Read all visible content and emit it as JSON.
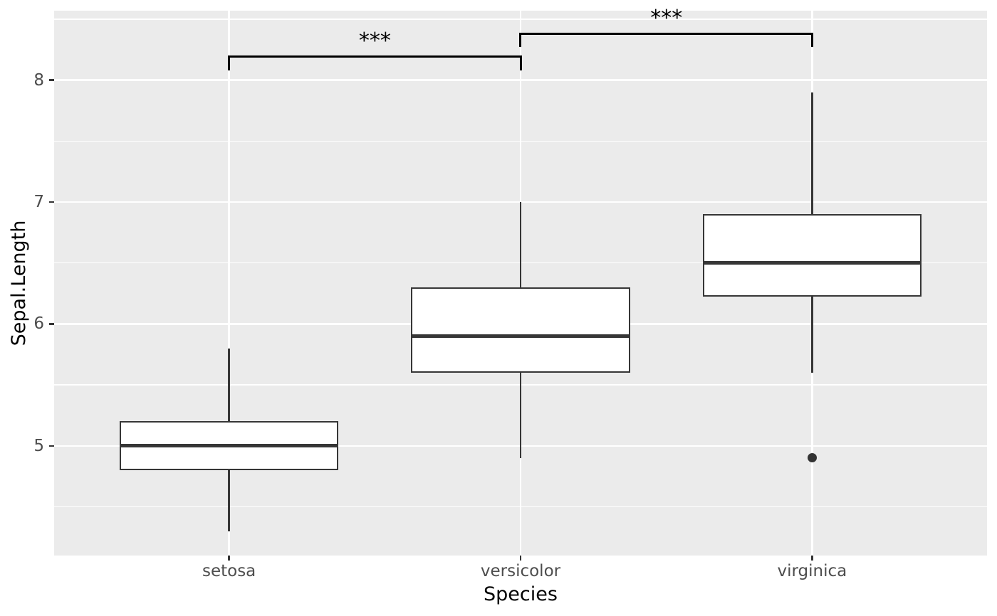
{
  "chart_data": {
    "type": "boxplot",
    "title": "",
    "xlabel": "Species",
    "ylabel": "Sepal.Length",
    "categories": [
      "setosa",
      "versicolor",
      "virginica"
    ],
    "series": [
      {
        "name": "setosa",
        "whisker_low": 4.3,
        "q1": 4.8,
        "median": 5.0,
        "q3": 5.2,
        "whisker_high": 5.8,
        "outliers": []
      },
      {
        "name": "versicolor",
        "whisker_low": 4.9,
        "q1": 5.6,
        "median": 5.9,
        "q3": 6.3,
        "whisker_high": 7.0,
        "outliers": []
      },
      {
        "name": "virginica",
        "whisker_low": 5.6,
        "q1": 6.225,
        "median": 6.5,
        "q3": 6.9,
        "whisker_high": 7.9,
        "outliers": [
          4.9
        ]
      }
    ],
    "significance_brackets": [
      {
        "from": "setosa",
        "to": "versicolor",
        "label": "***",
        "y": 8.19,
        "tick_down": 0.1
      },
      {
        "from": "versicolor",
        "to": "virginica",
        "label": "***",
        "y": 8.38,
        "tick_down": 0.1
      }
    ],
    "y_major_ticks": [
      5,
      6,
      7,
      8
    ],
    "y_tick_labels": [
      "5",
      "6",
      "7",
      "8"
    ],
    "y_minor_ticks": [
      4.5,
      5.5,
      6.5,
      7.5,
      8.5
    ],
    "ylim": [
      4.1,
      8.57
    ],
    "x_domain": [
      0.4,
      3.6
    ],
    "box_width_units": 0.75,
    "grid": true,
    "legend": "none"
  },
  "colors": {
    "panel_bg": "#EBEBEB",
    "grid": "#FFFFFF",
    "box_stroke": "#363636",
    "box_fill": "#FFFFFF",
    "outlier": "#333333",
    "bracket": "#000000",
    "sig_label": "#000000",
    "axis_text": "#4D4D4D",
    "axis_title": "#000000",
    "tick_mark": "#333333"
  }
}
